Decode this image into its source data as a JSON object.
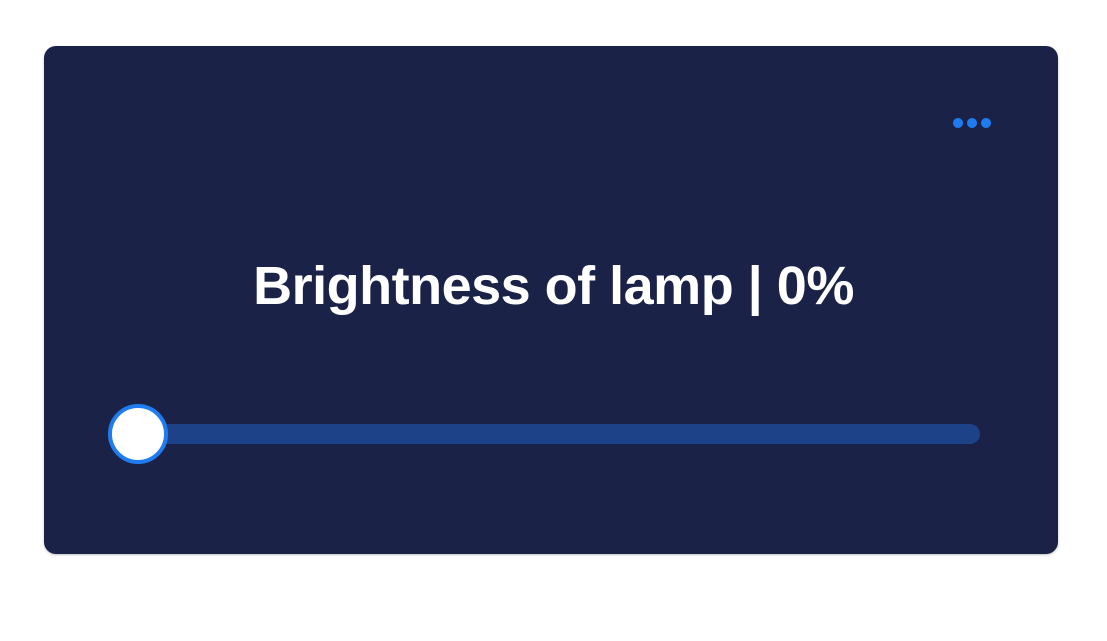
{
  "card": {
    "title": "Brightness of lamp | 0%",
    "more_icon": "more-horizontal-icon"
  },
  "slider": {
    "value_percent": 0
  },
  "colors": {
    "card_background": "#1a2347",
    "accent": "#1f7cf0",
    "track": "#1e4288",
    "text": "#ffffff"
  }
}
